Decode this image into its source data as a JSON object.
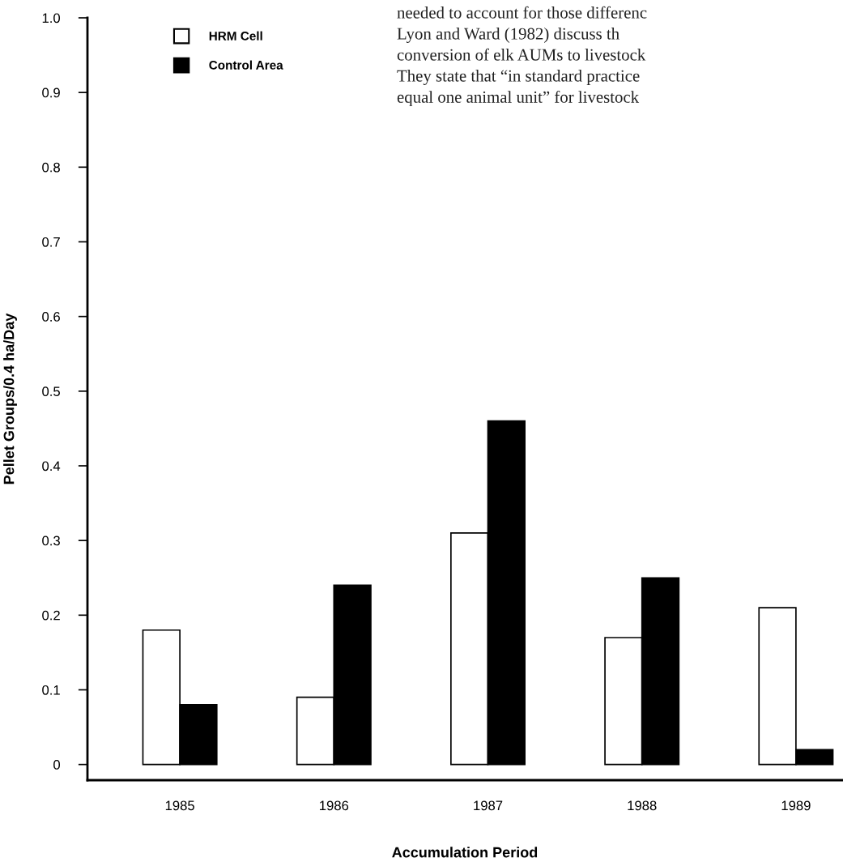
{
  "chart_data": {
    "type": "bar",
    "categories": [
      "1985",
      "1986",
      "1987",
      "1988",
      "1989"
    ],
    "xlabel": "Accumulation Period",
    "ylabel": "Pellet Groups/0.4 ha/Day",
    "series": [
      {
        "name": "HRM Cell",
        "color": "#ffffff",
        "values": [
          0.18,
          0.09,
          0.31,
          0.17,
          0.21
        ]
      },
      {
        "name": "Control Area",
        "color": "#000000",
        "values": [
          0.08,
          0.24,
          0.46,
          0.25,
          0.02
        ]
      }
    ],
    "ylim": [
      -0.021,
      1.0
    ],
    "yticks": [
      0,
      0.1,
      0.2,
      0.3,
      0.4,
      0.5,
      0.6,
      0.7,
      0.8,
      0.9,
      {
        "value": 1.0,
        "label": "1.0"
      }
    ],
    "grid": false,
    "legend": "top left",
    "annotations": [
      "needed to account for those differenc",
      "Lyon and Ward (1982) discuss th",
      "conversion of elk AUMs to livestock",
      "They state that “in standard practice",
      "equal one animal unit” for livestock"
    ]
  }
}
